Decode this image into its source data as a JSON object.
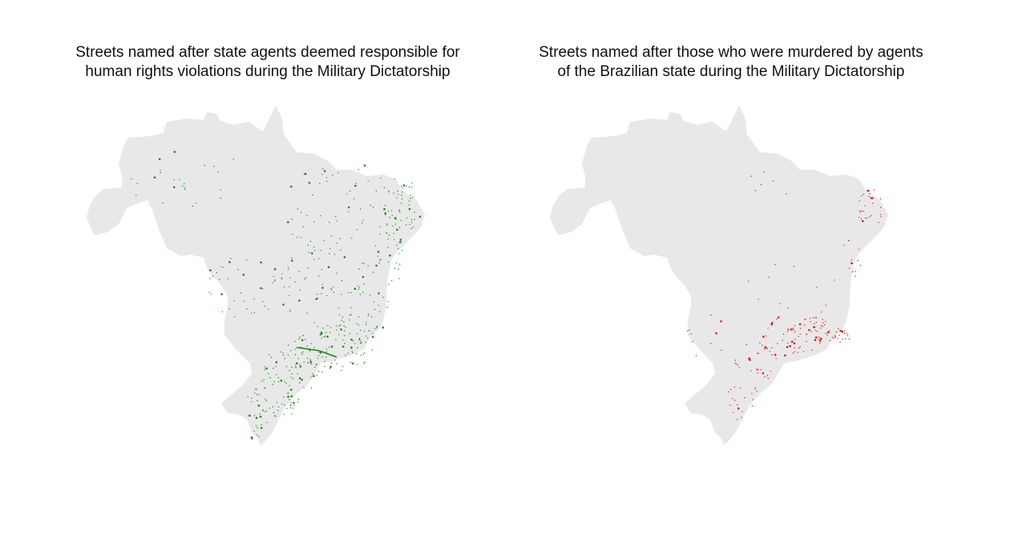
{
  "maps": [
    {
      "id": "agents",
      "title_line1": "Streets named after state agents deemed responsible for",
      "title_line2": "human rights violations during the Military Dictatorship",
      "dot_color": "#1a8a1a",
      "country_color": "#e8e8e8"
    },
    {
      "id": "victims",
      "title_line1": "Streets named after those who were murdered by  agents",
      "title_line2": "of the Brazilian state during the Military Dictatorship",
      "dot_color": "#e8141c",
      "country_color": "#e8e8e8"
    }
  ]
}
